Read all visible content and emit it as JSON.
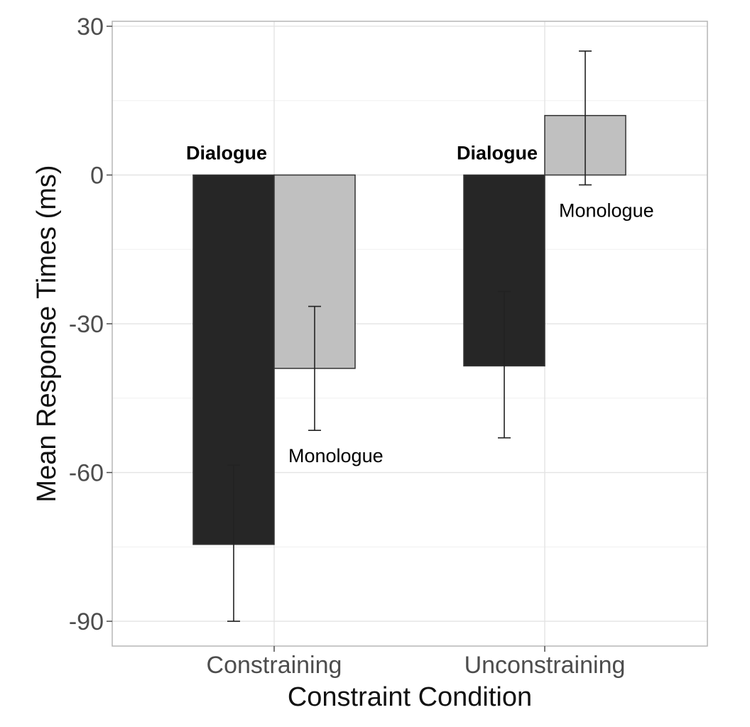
{
  "chart_data": {
    "type": "bar",
    "xlabel": "Constraint Condition",
    "ylabel": "Mean Response Times (ms)",
    "categories": [
      "Constraining",
      "Unconstraining"
    ],
    "ylim": [
      -95,
      31
    ],
    "yticks": [
      30,
      0,
      -30,
      -60,
      -90
    ],
    "grid": true,
    "series": [
      {
        "name": "Dialogue",
        "color": "#262626",
        "values": [
          -74.5,
          -38.5
        ],
        "error_low": [
          -90,
          -53
        ],
        "error_high": [
          -58.5,
          -23.5
        ],
        "label_position": "above"
      },
      {
        "name": "Monologue",
        "color": "#c0c0c0",
        "values": [
          -39,
          12
        ],
        "error_low": [
          -51.5,
          -2
        ],
        "error_high": [
          -26.5,
          25
        ],
        "label_position": "below"
      }
    ]
  }
}
